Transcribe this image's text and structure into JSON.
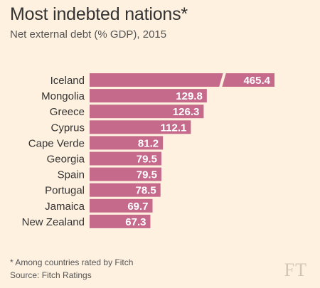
{
  "header": {
    "title": "Most indebted nations*",
    "subtitle": "Net external debt (% GDP), 2015"
  },
  "footer": {
    "footnote": "* Among countries rated by Fitch",
    "source": "Source: Fitch Ratings",
    "logo": "FT"
  },
  "colors": {
    "bar": "#C56A8A",
    "label": "#333333",
    "value": "#FFFFFF",
    "background": "#FFF1E0"
  },
  "chart_data": {
    "type": "bar",
    "orientation": "horizontal",
    "axis_break_on": "Iceland",
    "categories": [
      "Iceland",
      "Mongolia",
      "Greece",
      "Cyprus",
      "Cape Verde",
      "Georgia",
      "Spain",
      "Portugal",
      "Jamaica",
      "New Zealand"
    ],
    "values": [
      465.4,
      129.8,
      126.3,
      112.1,
      81.2,
      79.5,
      79.5,
      78.5,
      69.7,
      67.3
    ],
    "value_labels": [
      "465.4",
      "129.8",
      "126.3",
      "112.1",
      "81.2",
      "79.5",
      "79.5",
      "78.5",
      "69.7",
      "67.3"
    ],
    "title": "Most indebted nations*",
    "subtitle": "Net external debt (% GDP), 2015",
    "xlabel": "",
    "ylabel": "",
    "grid": false
  }
}
